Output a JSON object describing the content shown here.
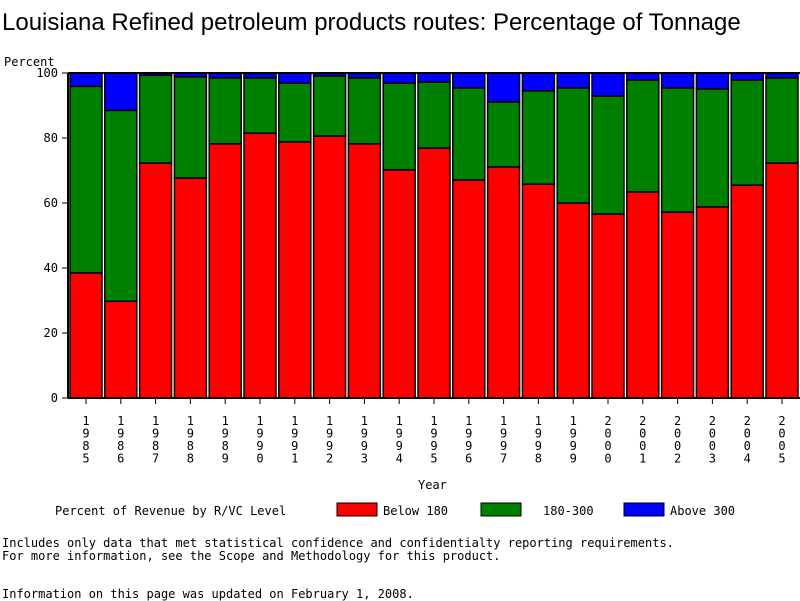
{
  "chart_data": {
    "type": "bar",
    "stacked": true,
    "title": "Louisiana Refined petroleum products routes: Percentage of Tonnage",
    "xlabel": "Year",
    "ylabel": "Percent",
    "ylim": [
      0,
      100
    ],
    "yticks": [
      "0",
      "20",
      "40",
      "60",
      "80",
      "100"
    ],
    "categories": [
      "1985",
      "1986",
      "1987",
      "1988",
      "1989",
      "1990",
      "1991",
      "1992",
      "1993",
      "1994",
      "1995",
      "1996",
      "1997",
      "1998",
      "1999",
      "2000",
      "2001",
      "2002",
      "2003",
      "2004",
      "2005"
    ],
    "series": [
      {
        "name": "Below 180",
        "color": "#ff0000",
        "values": [
          38.5,
          29.8,
          72.3,
          67.7,
          78.2,
          81.5,
          78.8,
          80.6,
          78.2,
          70.2,
          76.9,
          67.1,
          71.1,
          65.8,
          60.0,
          56.6,
          63.4,
          57.2,
          58.8,
          65.5,
          72.3
        ]
      },
      {
        "name": "180-300",
        "color": "#008000",
        "values": [
          57.4,
          58.7,
          27.0,
          31.1,
          20.3,
          17.0,
          18.1,
          18.5,
          20.3,
          26.7,
          20.3,
          28.3,
          20.0,
          28.7,
          35.4,
          36.3,
          34.4,
          38.2,
          36.3,
          32.3,
          26.2
        ]
      },
      {
        "name": "Above 300",
        "color": "#0000ff",
        "values": [
          4.1,
          11.5,
          0.7,
          1.2,
          1.5,
          1.5,
          3.1,
          0.9,
          1.5,
          3.1,
          2.8,
          4.6,
          8.9,
          5.5,
          4.6,
          7.1,
          2.2,
          4.6,
          4.9,
          2.2,
          1.5
        ]
      }
    ],
    "legend": {
      "title": "Percent of Revenue by R/VC Level",
      "position": "bottom"
    },
    "grid": false
  },
  "footer": {
    "note1": "Includes only data that met statistical confidence and confidentialty reporting requirements.",
    "note2": "For more information, see the Scope and Methodology for this product.",
    "updated": "Information on this page was updated on February 1, 2008."
  }
}
